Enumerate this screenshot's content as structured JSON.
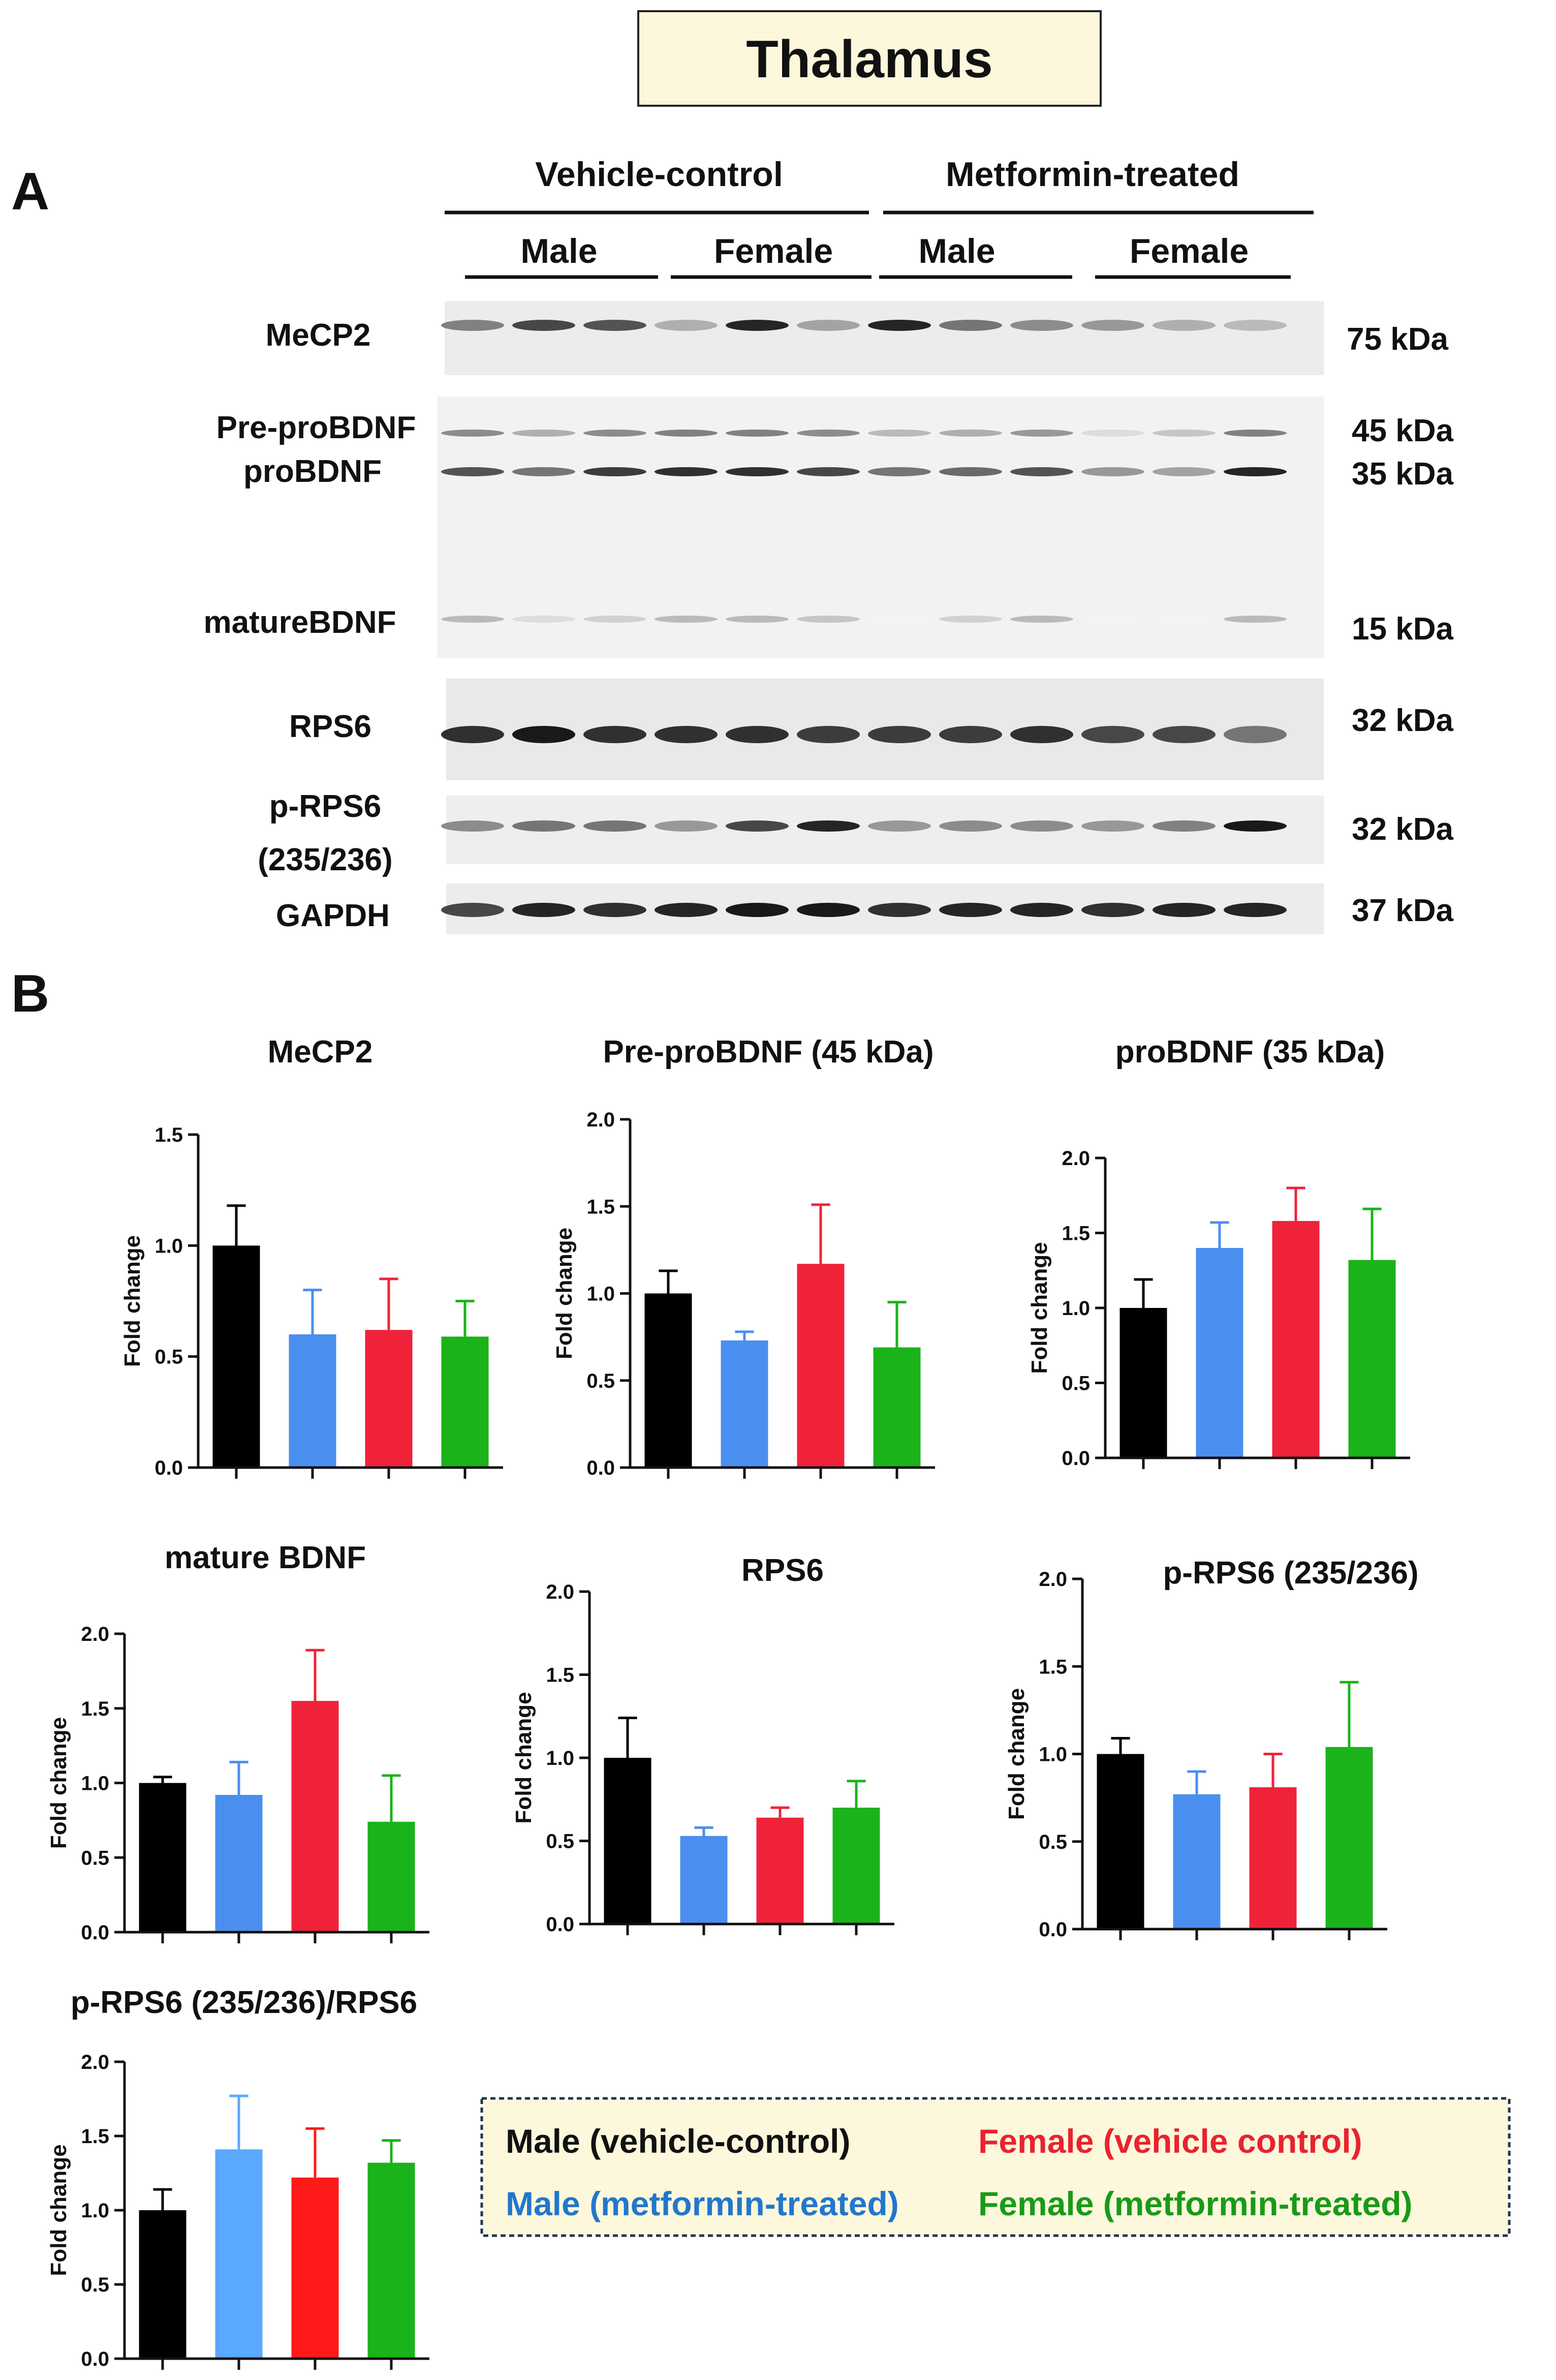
{
  "figure_title": "Thalamus",
  "panel_a": {
    "letter": "A",
    "groups": [
      "Vehicle-control",
      "Metformin-treated"
    ],
    "sexes": [
      "Male",
      "Female",
      "Male",
      "Female"
    ],
    "blot_rows": [
      {
        "label": "MeCP2",
        "kda": [
          "75 kDa"
        ]
      },
      {
        "label": "Pre-proBDNF",
        "kda": [
          "45 kDa"
        ]
      },
      {
        "label": "proBDNF",
        "kda": [
          "35 kDa"
        ]
      },
      {
        "label": "matureBDNF",
        "kda": [
          "15 kDa"
        ]
      },
      {
        "label": "RPS6",
        "kda": [
          "32 kDa"
        ]
      },
      {
        "label": "p-RPS6",
        "label2": "(235/236)",
        "kda": [
          "32 kDa"
        ]
      },
      {
        "label": "GAPDH",
        "kda": [
          "37 kDa"
        ]
      }
    ]
  },
  "panel_b": {
    "letter": "B",
    "legend": [
      {
        "text": "Male (vehicle-control)",
        "color": "#111111"
      },
      {
        "text": "Female (vehicle control)",
        "color": "#e8232f"
      },
      {
        "text": "Male (metformin-treated)",
        "color": "#2277cc"
      },
      {
        "text": "Female (metformin-treated)",
        "color": "#199a19"
      }
    ]
  },
  "chart_data": [
    {
      "type": "bar",
      "title": "MeCP2",
      "ylabel": "Fold change",
      "ylim": [
        0,
        1.5
      ],
      "ticks": [
        "0.0",
        "0.5",
        "1.0",
        "1.5"
      ],
      "colors": [
        "#000000",
        "#4a8ff0",
        "#f0223a",
        "#1ab31a"
      ],
      "values": [
        1.0,
        0.6,
        0.62,
        0.59
      ],
      "errors": [
        0.18,
        0.2,
        0.23,
        0.16
      ]
    },
    {
      "type": "bar",
      "title": "Pre-proBDNF (45 kDa)",
      "ylabel": "Fold change",
      "ylim": [
        0,
        2.0
      ],
      "ticks": [
        "0.0",
        "0.5",
        "1.0",
        "1.5",
        "2.0"
      ],
      "colors": [
        "#000000",
        "#4a8ff0",
        "#f0223a",
        "#1ab31a"
      ],
      "values": [
        1.0,
        0.73,
        1.17,
        0.69
      ],
      "errors": [
        0.13,
        0.05,
        0.34,
        0.26
      ]
    },
    {
      "type": "bar",
      "title": "proBDNF (35 kDa)",
      "ylabel": "Fold change",
      "ylim": [
        0,
        2.0
      ],
      "ticks": [
        "0.0",
        "0.5",
        "1.0",
        "1.5",
        "2.0"
      ],
      "colors": [
        "#000000",
        "#4a8ff0",
        "#f0223a",
        "#1ab31a"
      ],
      "values": [
        1.0,
        1.4,
        1.58,
        1.32
      ],
      "errors": [
        0.19,
        0.17,
        0.22,
        0.34
      ]
    },
    {
      "type": "bar",
      "title": "mature BDNF",
      "ylabel": "Fold change",
      "ylim": [
        0,
        2.0
      ],
      "ticks": [
        "0.0",
        "0.5",
        "1.0",
        "1.5",
        "2.0"
      ],
      "colors": [
        "#000000",
        "#4a8ff0",
        "#f0223a",
        "#1ab31a"
      ],
      "values": [
        1.0,
        0.92,
        1.55,
        0.74
      ],
      "errors": [
        0.04,
        0.22,
        0.34,
        0.31
      ]
    },
    {
      "type": "bar",
      "title": "RPS6",
      "ylabel": "Fold change",
      "ylim": [
        0,
        2.0
      ],
      "ticks": [
        "0.0",
        "0.5",
        "1.0",
        "1.5",
        "2.0"
      ],
      "colors": [
        "#000000",
        "#4a8ff0",
        "#f0223a",
        "#1ab31a"
      ],
      "values": [
        1.0,
        0.53,
        0.64,
        0.7
      ],
      "errors": [
        0.24,
        0.05,
        0.06,
        0.16
      ]
    },
    {
      "type": "bar",
      "title": "p-RPS6 (235/236)",
      "ylabel": "Fold change",
      "ylim": [
        0,
        2.0
      ],
      "ticks": [
        "0.0",
        "0.5",
        "1.0",
        "1.5",
        "2.0"
      ],
      "colors": [
        "#000000",
        "#4a8ff0",
        "#f0223a",
        "#1ab31a"
      ],
      "values": [
        1.0,
        0.77,
        0.81,
        1.04
      ],
      "errors": [
        0.09,
        0.13,
        0.19,
        0.37
      ]
    },
    {
      "type": "bar",
      "title": "p-RPS6 (235/236)/RPS6",
      "ylabel": "Fold change",
      "ylim": [
        0,
        2.0
      ],
      "ticks": [
        "0.0",
        "0.5",
        "1.0",
        "1.5",
        "2.0"
      ],
      "colors": [
        "#000000",
        "#5aa8ff",
        "#ff1a1a",
        "#1ab31a"
      ],
      "values": [
        1.0,
        1.41,
        1.22,
        1.32
      ],
      "errors": [
        0.14,
        0.36,
        0.33,
        0.15
      ]
    }
  ]
}
